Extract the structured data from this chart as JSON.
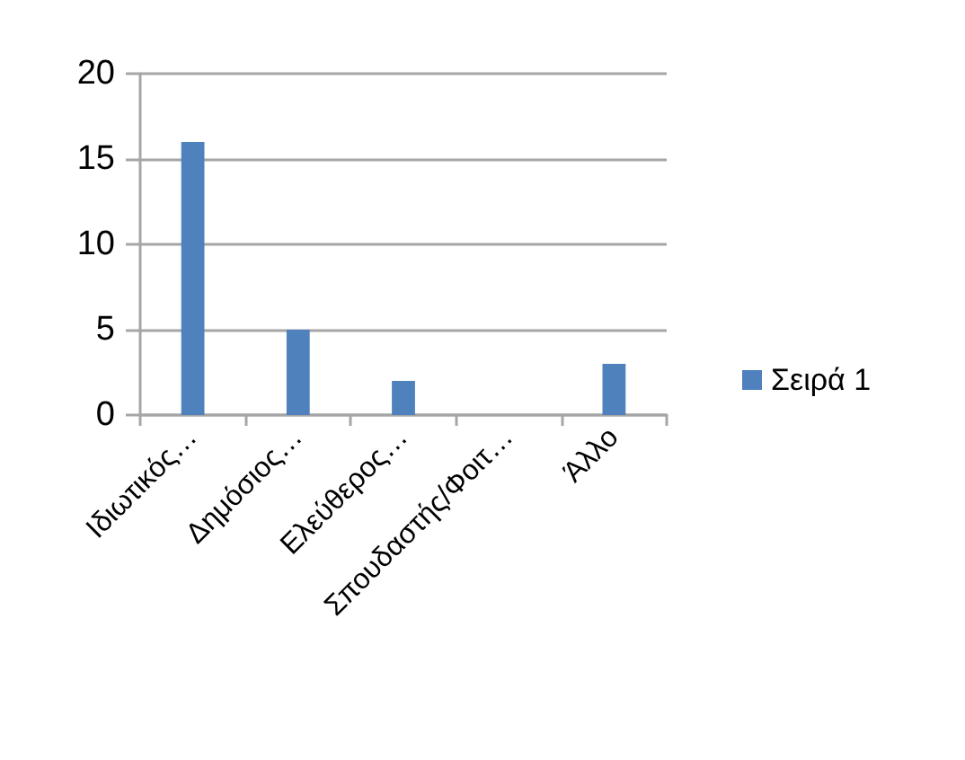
{
  "chart_data": {
    "type": "bar",
    "categories": [
      "Ιδιωτικός…",
      "Δημόσιος…",
      "Ελεύθερος…",
      "Σπουδαστής/Φοιτ…",
      "Άλλο"
    ],
    "series": [
      {
        "name": "Σειρά 1",
        "color": "#4f81bd",
        "values": [
          16,
          5,
          2,
          0,
          3
        ]
      }
    ],
    "ylim": [
      0,
      20
    ],
    "yticks": [
      0,
      5,
      10,
      15,
      20
    ],
    "grid": "y",
    "legend": "right"
  }
}
